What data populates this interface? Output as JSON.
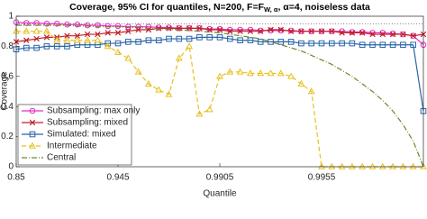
{
  "chart_data": {
    "type": "line",
    "title": "Coverage, 95% CI for quantiles, N=200, F=F",
    "title_subscript": "W, α",
    "title_end": ", α=4, noiseless data",
    "x_label": "Quantile",
    "y_label": "Coverage",
    "x": [
      1,
      2,
      3,
      4,
      5,
      6,
      7,
      8,
      9,
      10,
      11,
      12,
      13,
      14,
      15,
      16,
      17,
      18,
      19,
      20,
      21,
      22,
      23,
      24,
      25,
      26,
      27,
      28,
      29,
      30,
      31,
      32,
      33,
      34,
      35,
      36,
      37,
      38,
      39,
      40,
      41
    ],
    "xlim": [
      1,
      41
    ],
    "xticks": [
      {
        "value": 1,
        "label": "0.85"
      },
      {
        "value": 11,
        "label": "0.945"
      },
      {
        "value": 21,
        "label": "0.9905"
      },
      {
        "value": 31,
        "label": "0.9955"
      }
    ],
    "ylim": [
      0,
      1
    ],
    "yticks": [
      0,
      0.2,
      0.4,
      0.6,
      0.8,
      {
        "value": 1,
        "label": "1"
      }
    ],
    "reference_line": 0.95,
    "legend": "lower-left",
    "series": [
      {
        "name": "Subsampling: max only",
        "color": "#e030c0",
        "marker": "circle",
        "dash": "",
        "values": [
          0.96,
          0.955,
          0.955,
          0.95,
          0.95,
          0.945,
          0.945,
          0.94,
          0.94,
          0.935,
          0.935,
          0.93,
          0.93,
          0.93,
          0.925,
          0.925,
          0.92,
          0.92,
          0.92,
          0.915,
          0.915,
          0.91,
          0.91,
          0.91,
          0.905,
          0.905,
          0.905,
          0.905,
          0.9,
          0.9,
          0.9,
          0.9,
          0.9,
          0.895,
          0.895,
          0.89,
          0.89,
          0.885,
          0.88,
          0.87,
          0.81
        ]
      },
      {
        "name": "Subsampling: mixed",
        "color": "#c0202a",
        "marker": "x",
        "dash": "",
        "values": [
          0.83,
          0.84,
          0.85,
          0.86,
          0.86,
          0.87,
          0.87,
          0.88,
          0.88,
          0.89,
          0.89,
          0.9,
          0.91,
          0.91,
          0.92,
          0.92,
          0.92,
          0.92,
          0.92,
          0.91,
          0.91,
          0.9,
          0.9,
          0.9,
          0.9,
          0.91,
          0.91,
          0.9,
          0.9,
          0.9,
          0.9,
          0.9,
          0.89,
          0.89,
          0.89,
          0.88,
          0.88,
          0.88,
          0.88,
          0.87,
          0.88
        ]
      },
      {
        "name": "Simulated: mixed",
        "color": "#2a64a8",
        "marker": "square",
        "dash": "",
        "values": [
          0.78,
          0.79,
          0.79,
          0.8,
          0.8,
          0.8,
          0.81,
          0.81,
          0.81,
          0.82,
          0.82,
          0.83,
          0.83,
          0.84,
          0.84,
          0.85,
          0.85,
          0.85,
          0.86,
          0.86,
          0.86,
          0.85,
          0.84,
          0.84,
          0.83,
          0.83,
          0.83,
          0.83,
          0.82,
          0.82,
          0.82,
          0.82,
          0.82,
          0.82,
          0.81,
          0.81,
          0.81,
          0.81,
          0.81,
          0.81,
          0.37
        ]
      },
      {
        "name": "Intermediate",
        "color": "#e8c020",
        "marker": "triangle",
        "dash": "5 3",
        "values": [
          0.9,
          0.9,
          0.9,
          0.9,
          0.84,
          0.84,
          0.84,
          0.84,
          0.84,
          0.8,
          0.76,
          0.72,
          0.63,
          0.55,
          0.51,
          0.48,
          0.72,
          0.8,
          0.35,
          0.38,
          0.6,
          0.63,
          0.63,
          0.62,
          0.62,
          0.62,
          0.62,
          0.6,
          0.55,
          0.5,
          0,
          0,
          0,
          0,
          0,
          0,
          0,
          0,
          0,
          0,
          0
        ]
      },
      {
        "name": "Central",
        "color": "#6a8a2a",
        "marker": "none",
        "dash": "6 2 1 2",
        "values": [
          0.94,
          0.94,
          0.94,
          0.94,
          0.94,
          0.94,
          0.935,
          0.935,
          0.93,
          0.93,
          0.93,
          0.925,
          0.925,
          0.92,
          0.915,
          0.915,
          0.91,
          0.905,
          0.9,
          0.895,
          0.89,
          0.88,
          0.87,
          0.86,
          0.85,
          0.83,
          0.81,
          0.79,
          0.77,
          0.74,
          0.71,
          0.68,
          0.64,
          0.6,
          0.55,
          0.5,
          0.44,
          0.37,
          0.28,
          0.17,
          0
        ]
      }
    ]
  }
}
